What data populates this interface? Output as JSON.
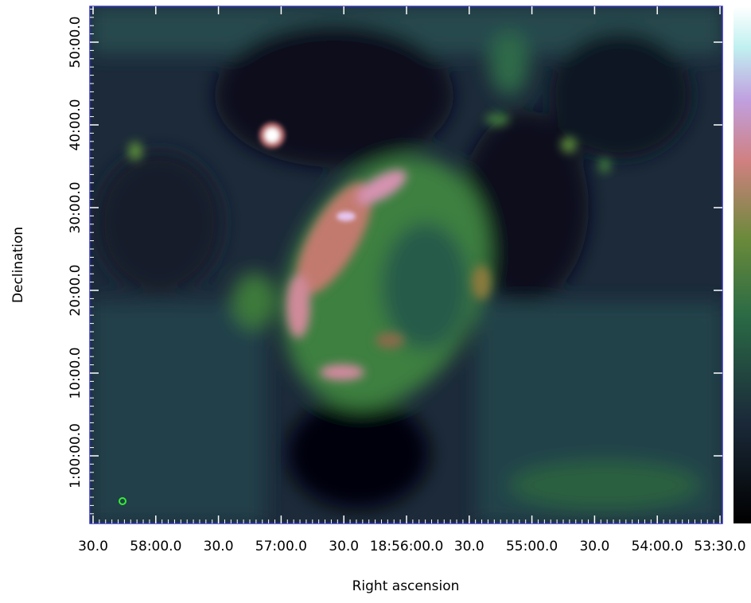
{
  "x_axis": {
    "label": "Right ascension",
    "ticks": [
      "30.0",
      "58:00.0",
      "30.0",
      "57:00.0",
      "30.0",
      "18:56:00.0",
      "30.0",
      "55:00.0",
      "30.0",
      "54:00.0",
      "53:30.0"
    ]
  },
  "y_axis": {
    "label": "Declination",
    "ticks": [
      "1:00:00.0",
      "10:00.0",
      "20:00.0",
      "30:00.0",
      "40:00.0",
      "50:00.0"
    ]
  }
}
